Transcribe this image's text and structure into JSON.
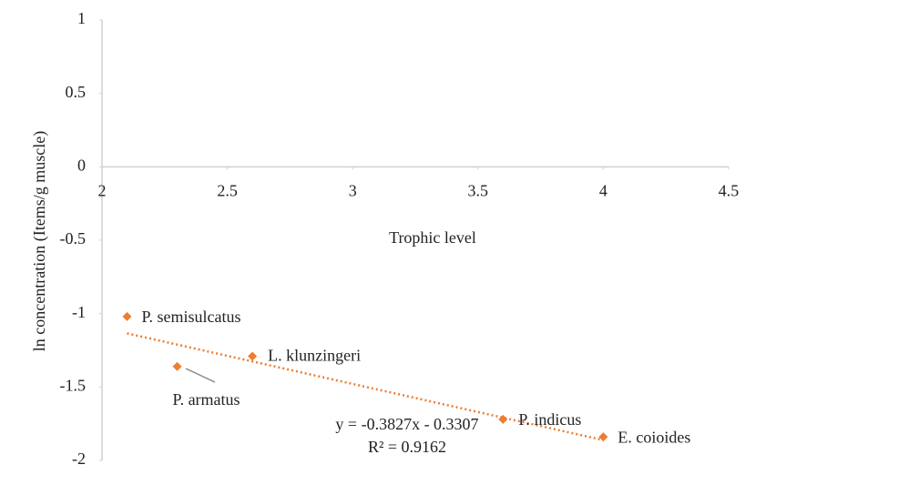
{
  "chart_data": {
    "type": "scatter",
    "x_label": "Trophic level",
    "y_label": "ln  concentration (Items/g muscle)",
    "x": [
      2.1,
      2.6,
      2.3,
      3.6,
      4.0
    ],
    "values": [
      -1.02,
      -1.29,
      -1.36,
      -1.72,
      -1.84
    ],
    "labels": [
      "P. semisulcatus",
      "L. klunzingeri",
      "P. armatus",
      "P. indicus",
      "E. coioides"
    ],
    "color": "#ed7d31",
    "xlim": [
      2,
      4.5
    ],
    "xticks": [
      2,
      2.5,
      3,
      3.5,
      4,
      4.5
    ],
    "ylim": [
      -2,
      1
    ],
    "yticks": [
      1,
      0.5,
      0,
      -0.5,
      -1,
      -1.5,
      -2
    ],
    "grid": false,
    "trendline": {
      "slope": -0.3827,
      "intercept": -0.3307,
      "equation_label": "y = -0.3827x - 0.3307",
      "r2_label": "R² = 0.9162"
    }
  }
}
